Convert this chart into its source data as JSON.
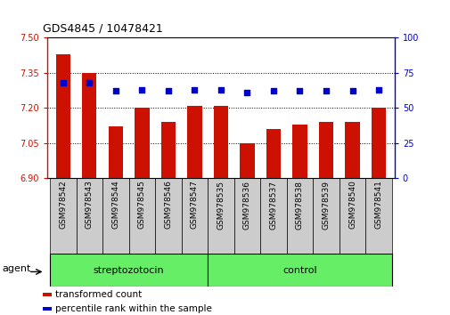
{
  "title": "GDS4845 / 10478421",
  "categories": [
    "GSM978542",
    "GSM978543",
    "GSM978544",
    "GSM978545",
    "GSM978546",
    "GSM978547",
    "GSM978535",
    "GSM978536",
    "GSM978537",
    "GSM978538",
    "GSM978539",
    "GSM978540",
    "GSM978541"
  ],
  "bar_values": [
    7.43,
    7.35,
    7.12,
    7.2,
    7.14,
    7.21,
    7.21,
    7.05,
    7.11,
    7.13,
    7.14,
    7.14,
    7.2
  ],
  "percentile_values": [
    68,
    68,
    62,
    63,
    62,
    63,
    63,
    61,
    62,
    62,
    62,
    62,
    63
  ],
  "bar_color": "#cc1100",
  "dot_color": "#0000cc",
  "ylim_left": [
    6.9,
    7.5
  ],
  "ylim_right": [
    0,
    100
  ],
  "yticks_left": [
    6.9,
    7.05,
    7.2,
    7.35,
    7.5
  ],
  "yticks_right": [
    0,
    25,
    50,
    75,
    100
  ],
  "groups": [
    {
      "label": "streptozotocin",
      "indices": [
        0,
        5
      ],
      "color": "#66ee66"
    },
    {
      "label": "control",
      "indices": [
        6,
        12
      ],
      "color": "#66ee66"
    }
  ],
  "agent_label": "agent",
  "legend": [
    {
      "label": "transformed count",
      "color": "#cc1100"
    },
    {
      "label": "percentile rank within the sample",
      "color": "#0000cc"
    }
  ],
  "grid_color": "black",
  "bg": "#ffffff",
  "bar_bottom": 6.9,
  "xticklabel_bg": "#cccccc"
}
